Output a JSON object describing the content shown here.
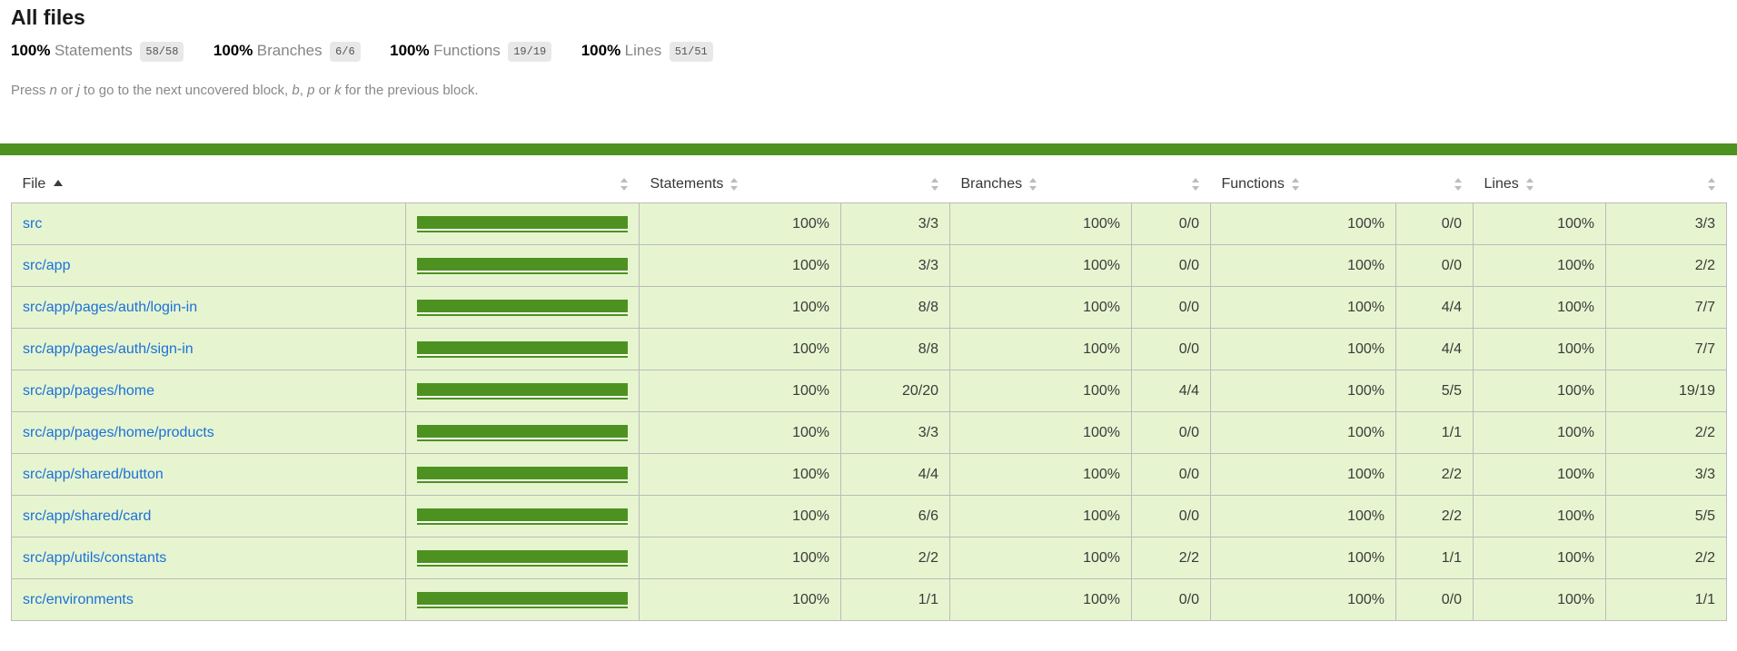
{
  "page": {
    "title": "All files"
  },
  "summary": {
    "metrics": [
      {
        "pct": "100%",
        "label": "Statements",
        "fraction": "58/58"
      },
      {
        "pct": "100%",
        "label": "Branches",
        "fraction": "6/6"
      },
      {
        "pct": "100%",
        "label": "Functions",
        "fraction": "19/19"
      },
      {
        "pct": "100%",
        "label": "Lines",
        "fraction": "51/51"
      }
    ]
  },
  "hint": {
    "segments": [
      {
        "text": "Press "
      },
      {
        "text": "n",
        "em": true
      },
      {
        "text": " or "
      },
      {
        "text": "j",
        "em": true
      },
      {
        "text": " to go to the next uncovered block, "
      },
      {
        "text": "b",
        "em": true
      },
      {
        "text": ", "
      },
      {
        "text": "p",
        "em": true
      },
      {
        "text": " or "
      },
      {
        "text": "k",
        "em": true
      },
      {
        "text": " for the previous block."
      }
    ]
  },
  "colors": {
    "accent_green": "#4d9221",
    "row_background": "#e6f5d0",
    "link_blue": "#1c70d9",
    "badge_background": "#e8e8e8",
    "table_border": "#bbbbbb"
  },
  "table": {
    "columns": [
      {
        "label": "File",
        "sort": "ascending",
        "type": "file"
      },
      {
        "label": "",
        "type": "pic"
      },
      {
        "label": "Statements",
        "type": "pct"
      },
      {
        "label": "",
        "type": "abs"
      },
      {
        "label": "Branches",
        "type": "pct"
      },
      {
        "label": "",
        "type": "abs"
      },
      {
        "label": "Functions",
        "type": "pct"
      },
      {
        "label": "",
        "type": "abs"
      },
      {
        "label": "Lines",
        "type": "pct"
      },
      {
        "label": "",
        "type": "abs"
      }
    ],
    "rows": [
      {
        "file": "src",
        "bar_width": "100%",
        "values": [
          "100%",
          "3/3",
          "100%",
          "0/0",
          "100%",
          "0/0",
          "100%",
          "3/3"
        ]
      },
      {
        "file": "src/app",
        "bar_width": "100%",
        "values": [
          "100%",
          "3/3",
          "100%",
          "0/0",
          "100%",
          "0/0",
          "100%",
          "2/2"
        ]
      },
      {
        "file": "src/app/pages/auth/login-in",
        "bar_width": "100%",
        "values": [
          "100%",
          "8/8",
          "100%",
          "0/0",
          "100%",
          "4/4",
          "100%",
          "7/7"
        ]
      },
      {
        "file": "src/app/pages/auth/sign-in",
        "bar_width": "100%",
        "values": [
          "100%",
          "8/8",
          "100%",
          "0/0",
          "100%",
          "4/4",
          "100%",
          "7/7"
        ]
      },
      {
        "file": "src/app/pages/home",
        "bar_width": "100%",
        "values": [
          "100%",
          "20/20",
          "100%",
          "4/4",
          "100%",
          "5/5",
          "100%",
          "19/19"
        ]
      },
      {
        "file": "src/app/pages/home/products",
        "bar_width": "100%",
        "values": [
          "100%",
          "3/3",
          "100%",
          "0/0",
          "100%",
          "1/1",
          "100%",
          "2/2"
        ]
      },
      {
        "file": "src/app/shared/button",
        "bar_width": "100%",
        "values": [
          "100%",
          "4/4",
          "100%",
          "0/0",
          "100%",
          "2/2",
          "100%",
          "3/3"
        ]
      },
      {
        "file": "src/app/shared/card",
        "bar_width": "100%",
        "values": [
          "100%",
          "6/6",
          "100%",
          "0/0",
          "100%",
          "2/2",
          "100%",
          "5/5"
        ]
      },
      {
        "file": "src/app/utils/constants",
        "bar_width": "100%",
        "values": [
          "100%",
          "2/2",
          "100%",
          "2/2",
          "100%",
          "1/1",
          "100%",
          "2/2"
        ]
      },
      {
        "file": "src/environments",
        "bar_width": "100%",
        "values": [
          "100%",
          "1/1",
          "100%",
          "0/0",
          "100%",
          "0/0",
          "100%",
          "1/1"
        ]
      }
    ]
  }
}
